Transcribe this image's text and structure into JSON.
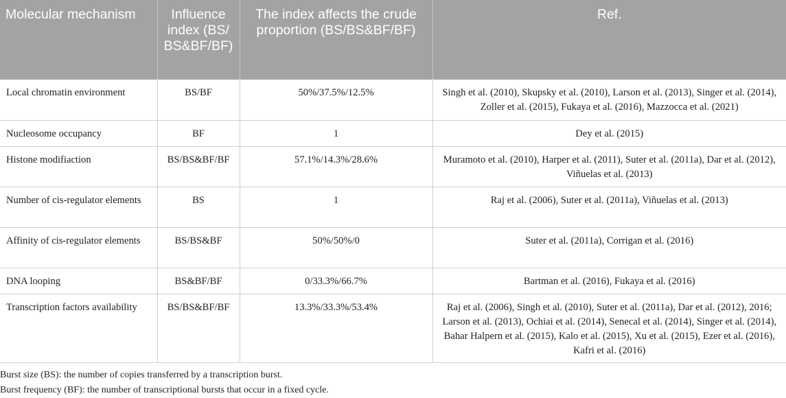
{
  "table": {
    "headers": [
      "Molecular mechanism",
      "Influence index (BS/ BS&BF/BF)",
      "The index affects the crude proportion (BS/BS&BF/BF)",
      "Ref."
    ],
    "rows": [
      {
        "mechanism": "Local chromatin environment",
        "index": "BS/BF",
        "proportion": "50%/37.5%/12.5%",
        "ref": "Singh et al. (2010), Skupsky et al. (2010), Larson et al. (2013), Singer et al. (2014), Zoller et al. (2015), Fukaya et al. (2016), Mazzocca et al. (2021)"
      },
      {
        "mechanism": "Nucleosome occupancy",
        "index": "BF",
        "proportion": "1",
        "ref": "Dey et al. (2015)"
      },
      {
        "mechanism": "Histone modifiaction",
        "index": "BS/BS&BF/BF",
        "proportion": "57.1%/14.3%/28.6%",
        "ref": "Muramoto et al. (2010), Harper et al. (2011), Suter et al. (2011a), Dar et al. (2012), Viñuelas et al. (2013)"
      },
      {
        "mechanism": "Number of cis-regulator elements",
        "index": "BS",
        "proportion": "1",
        "ref": "Raj et al. (2006), Suter et al. (2011a), Viñuelas et al. (2013)"
      },
      {
        "mechanism": "Affinity of cis-regulator elements",
        "index": "BS/BS&BF",
        "proportion": "50%/50%/0",
        "ref": "Suter et al. (2011a), Corrigan et al. (2016)"
      },
      {
        "mechanism": "DNA looping",
        "index": "BS&BF/BF",
        "proportion": "0/33.3%/66.7%",
        "ref": "Bartman et al. (2016), Fukaya et al. (2016)"
      },
      {
        "mechanism": "Transcription factors availability",
        "index": "BS/BS&BF/BF",
        "proportion": "13.3%/33.3%/53.4%",
        "ref": "Raj et al. (2006), Singh et al. (2010), Suter et al. (2011a), Dar et al. (2012), 2016; Larson et al. (2013), Ochiai et al. (2014), Senecal et al. (2014), Singer et al. (2014), Bahar Halpern et al. (2015), Kalo et al. (2015), Xu et al. (2015), Ezer et al. (2016), Kafri et al. (2016)"
      }
    ]
  },
  "footnotes": [
    "Burst size (BS): the number of copies transferred by a transcription burst.",
    "Burst frequency (BF): the number of transcriptional bursts that occur in a fixed cycle."
  ]
}
